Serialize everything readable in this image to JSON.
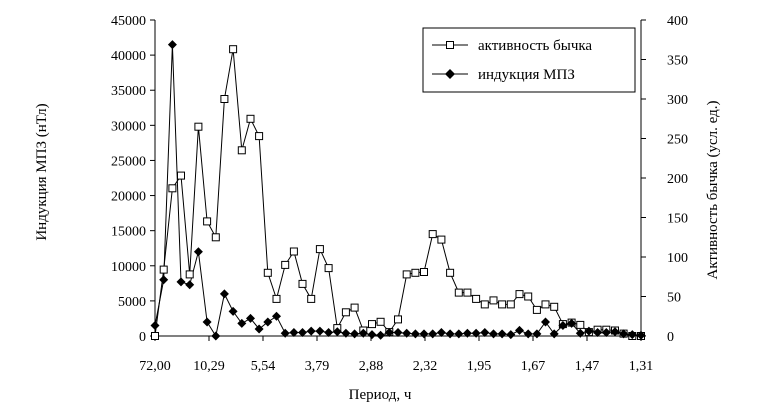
{
  "chart_data": {
    "type": "line",
    "xlabel": "Период, ч",
    "ylabel_left": "Индукция МПЗ (нТл)",
    "ylabel_right": "Активность бычка (усл. ед.)",
    "ylim_left": [
      0,
      45000
    ],
    "ylim_right": [
      0,
      400
    ],
    "yticks_left": [
      "0",
      "5000",
      "10000",
      "15000",
      "20000",
      "25000",
      "30000",
      "35000",
      "40000",
      "45000"
    ],
    "yticks_right": [
      "0",
      "50",
      "100",
      "150",
      "200",
      "250",
      "300",
      "350",
      "400"
    ],
    "xtick_labels": [
      "72,00",
      "10,29",
      "5,54",
      "3,79",
      "2,88",
      "2,32",
      "1,95",
      "1,67",
      "1,47",
      "1,31"
    ],
    "legend_position": "top-right",
    "series": [
      {
        "name": "активность бычка",
        "axis": "right",
        "marker": "open-square",
        "values": [
          0,
          84,
          187,
          203,
          78,
          265,
          145,
          125,
          300,
          363,
          235,
          275,
          253,
          80,
          47,
          90,
          107,
          66,
          47,
          110,
          86,
          10,
          30,
          36,
          7,
          15,
          18,
          5,
          21,
          78,
          80,
          81,
          129,
          122,
          80,
          55,
          55,
          47,
          40,
          45,
          40,
          40,
          53,
          50,
          33,
          40,
          37,
          15,
          17,
          14,
          5,
          8,
          8,
          7,
          3,
          0,
          0
        ]
      },
      {
        "name": "индукция МПЗ",
        "axis": "left",
        "marker": "filled-diamond",
        "values": [
          1500,
          8000,
          41500,
          7700,
          7300,
          12000,
          2000,
          0,
          6000,
          3500,
          1800,
          2500,
          1000,
          2000,
          2800,
          400,
          500,
          500,
          700,
          700,
          500,
          600,
          400,
          300,
          400,
          200,
          100,
          500,
          500,
          400,
          300,
          300,
          300,
          500,
          300,
          300,
          400,
          400,
          500,
          300,
          300,
          200,
          800,
          300,
          300,
          2000,
          300,
          1500,
          1800,
          400,
          700,
          500,
          500,
          600,
          300,
          200,
          100
        ]
      }
    ]
  }
}
